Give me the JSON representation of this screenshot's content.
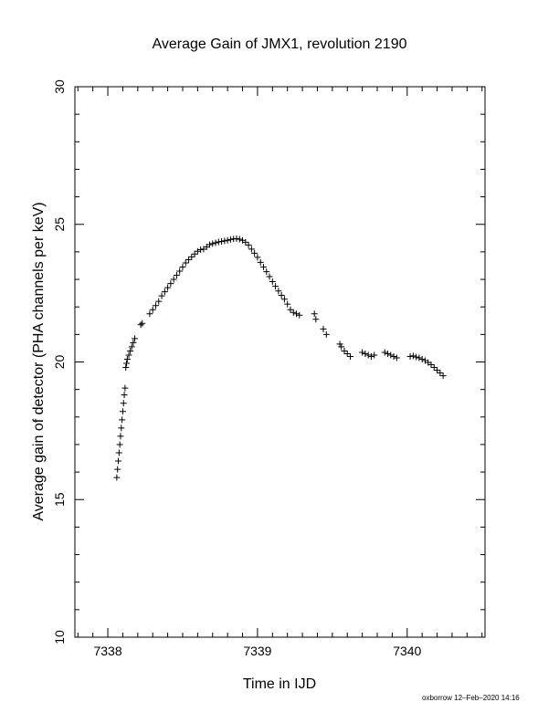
{
  "chart_data": {
    "type": "scatter",
    "title": "Average Gain of JMX1, revolution 2190",
    "xlabel": "Time in IJD",
    "ylabel": "Average gain of detector (PHA channels per keV)",
    "xlim": [
      7337.78,
      7340.52
    ],
    "ylim": [
      10,
      30
    ],
    "x_ticks": [
      7338,
      7339,
      7340
    ],
    "y_ticks": [
      10,
      15,
      20,
      25,
      30
    ],
    "x_tick_labels": [
      "7338",
      "7339",
      "7340"
    ],
    "y_tick_labels": [
      "10",
      "15",
      "20",
      "25",
      "30"
    ],
    "marker": "plus",
    "grid": false,
    "series": [
      {
        "x": [
          7338.06,
          7338.065,
          7338.07,
          7338.075,
          7338.08,
          7338.085,
          7338.09,
          7338.095,
          7338.1,
          7338.105,
          7338.11,
          7338.115,
          7338.12,
          7338.125,
          7338.13,
          7338.14,
          7338.15,
          7338.16,
          7338.17,
          7338.18,
          7338.22,
          7338.23,
          7338.28,
          7338.3,
          7338.32,
          7338.34,
          7338.36,
          7338.38,
          7338.4,
          7338.42,
          7338.44,
          7338.46,
          7338.48,
          7338.5,
          7338.52,
          7338.54,
          7338.56,
          7338.58,
          7338.6,
          7338.62,
          7338.64,
          7338.66,
          7338.68,
          7338.7,
          7338.72,
          7338.74,
          7338.76,
          7338.78,
          7338.8,
          7338.82,
          7338.84,
          7338.86,
          7338.88,
          7338.9,
          7338.92,
          7338.94,
          7338.96,
          7338.98,
          7339.0,
          7339.02,
          7339.04,
          7339.06,
          7339.08,
          7339.1,
          7339.12,
          7339.14,
          7339.16,
          7339.18,
          7339.2,
          7339.22,
          7339.24,
          7339.26,
          7339.28,
          7339.38,
          7339.39,
          7339.44,
          7339.46,
          7339.55,
          7339.56,
          7339.58,
          7339.6,
          7339.62,
          7339.7,
          7339.72,
          7339.74,
          7339.76,
          7339.78,
          7339.85,
          7339.87,
          7339.89,
          7339.91,
          7339.93,
          7340.02,
          7340.04,
          7340.06,
          7340.08,
          7340.1,
          7340.12,
          7340.14,
          7340.16,
          7340.18,
          7340.2,
          7340.22,
          7340.24
        ],
        "y": [
          15.8,
          16.1,
          16.4,
          16.7,
          17.0,
          17.3,
          17.6,
          17.9,
          18.2,
          18.5,
          18.8,
          19.05,
          19.8,
          19.95,
          20.1,
          20.25,
          20.4,
          20.55,
          20.7,
          20.85,
          21.35,
          21.4,
          21.75,
          21.9,
          22.05,
          22.2,
          22.4,
          22.55,
          22.7,
          22.85,
          23.0,
          23.15,
          23.3,
          23.45,
          23.6,
          23.72,
          23.82,
          23.92,
          24.02,
          24.08,
          24.1,
          24.18,
          24.26,
          24.3,
          24.33,
          24.36,
          24.38,
          24.4,
          24.42,
          24.45,
          24.47,
          24.48,
          24.46,
          24.42,
          24.35,
          24.25,
          24.1,
          23.95,
          23.8,
          23.62,
          23.45,
          23.28,
          23.1,
          22.92,
          22.75,
          22.58,
          22.42,
          22.28,
          22.1,
          21.9,
          21.8,
          21.75,
          21.7,
          21.75,
          21.55,
          21.2,
          21.0,
          20.65,
          20.55,
          20.4,
          20.3,
          20.2,
          20.35,
          20.3,
          20.25,
          20.2,
          20.25,
          20.35,
          20.3,
          20.25,
          20.2,
          20.15,
          20.2,
          20.22,
          20.18,
          20.15,
          20.1,
          20.05,
          19.98,
          19.9,
          19.8,
          19.7,
          19.6,
          19.5
        ]
      }
    ]
  },
  "footer_text": "oxborrow 12–Feb–2020 14:16",
  "colors": {
    "marks": "#000000",
    "frame": "#000000",
    "background": "#ffffff"
  }
}
